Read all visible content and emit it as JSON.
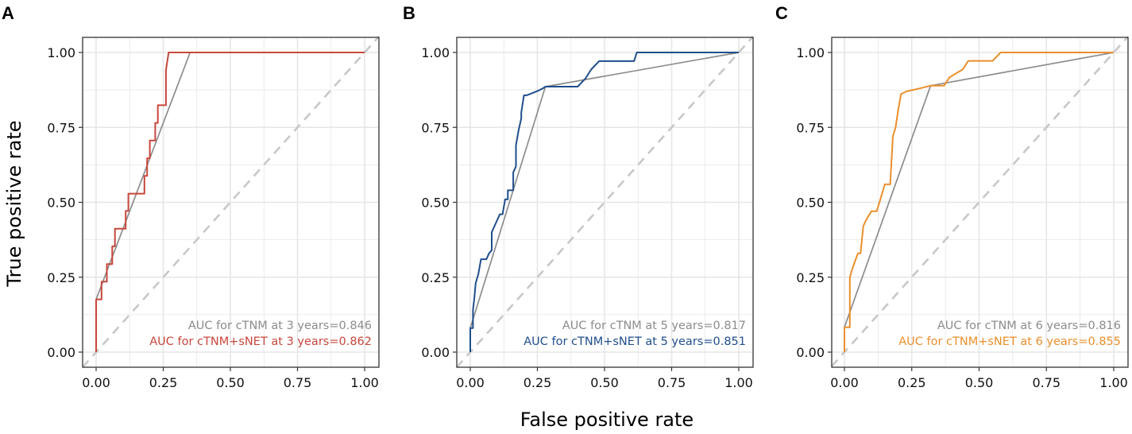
{
  "figure": {
    "ylabel": "True positive rate",
    "xlabel": "False positive rate"
  },
  "colors": {
    "grid": "#e6e6e6",
    "border": "#333333",
    "diagonal": "#c8c8c8",
    "ctnm": "#8c8c8c",
    "panel_a": "#c8473c",
    "panel_b": "#1f4e8c",
    "panel_c": "#ea8f2c"
  },
  "chart_data": [
    {
      "type": "line",
      "panel": "A",
      "xlim": [
        0,
        1
      ],
      "ylim": [
        0,
        1
      ],
      "xticks": [
        "0.00",
        "0.25",
        "0.50",
        "0.75",
        "1.00"
      ],
      "yticks": [
        "0.00",
        "0.25",
        "0.50",
        "0.75",
        "1.00"
      ],
      "grid": true,
      "legend": "bottom-right",
      "series": [
        {
          "name": "cTNM",
          "label": "AUC for cTNM at 3 years=0.846",
          "color_key": "ctnm",
          "x": [
            0,
            0.35,
            1.0
          ],
          "y": [
            0.176,
            1.0,
            1.0
          ]
        },
        {
          "name": "cTNM+sNET",
          "label": "AUC for cTNM+sNET at 3 years=0.862",
          "color_key": "panel_a",
          "x": [
            0,
            0,
            0.02,
            0.02,
            0.04,
            0.04,
            0.06,
            0.06,
            0.07,
            0.07,
            0.11,
            0.11,
            0.12,
            0.12,
            0.18,
            0.18,
            0.19,
            0.19,
            0.2,
            0.2,
            0.22,
            0.22,
            0.23,
            0.23,
            0.26,
            0.26,
            0.27,
            1.0
          ],
          "y": [
            0,
            0.176,
            0.176,
            0.235,
            0.235,
            0.294,
            0.294,
            0.353,
            0.353,
            0.412,
            0.412,
            0.471,
            0.471,
            0.529,
            0.529,
            0.588,
            0.588,
            0.647,
            0.647,
            0.706,
            0.706,
            0.765,
            0.765,
            0.824,
            0.824,
            0.941,
            1.0,
            1.0
          ]
        }
      ]
    },
    {
      "type": "line",
      "panel": "B",
      "xlim": [
        0,
        1
      ],
      "ylim": [
        0,
        1
      ],
      "xticks": [
        "0.00",
        "0.25",
        "0.50",
        "0.75",
        "1.00"
      ],
      "yticks": [
        "0.00",
        "0.25",
        "0.50",
        "0.75",
        "1.00"
      ],
      "grid": true,
      "legend": "bottom-right",
      "series": [
        {
          "name": "cTNM",
          "label": "AUC for cTNM at 5 years=0.817",
          "color_key": "ctnm",
          "x": [
            0,
            0.28,
            1.0
          ],
          "y": [
            0.08,
            0.886,
            1.0
          ]
        },
        {
          "name": "cTNM+sNET",
          "label": "AUC for cTNM+sNET at 5 years=0.851",
          "color_key": "panel_b",
          "x": [
            0,
            0,
            0.01,
            0.01,
            0.015,
            0.02,
            0.03,
            0.04,
            0.06,
            0.07,
            0.08,
            0.08,
            0.1,
            0.11,
            0.12,
            0.13,
            0.14,
            0.14,
            0.16,
            0.16,
            0.17,
            0.17,
            0.18,
            0.19,
            0.19,
            0.2,
            0.21,
            0.25,
            0.27,
            0.28,
            0.4,
            0.43,
            0.45,
            0.48,
            0.56,
            0.58,
            0.61,
            0.62,
            1.0
          ],
          "y": [
            0,
            0.08,
            0.08,
            0.14,
            0.18,
            0.23,
            0.26,
            0.31,
            0.31,
            0.33,
            0.34,
            0.4,
            0.44,
            0.46,
            0.46,
            0.51,
            0.51,
            0.54,
            0.54,
            0.6,
            0.62,
            0.69,
            0.74,
            0.78,
            0.8,
            0.857,
            0.857,
            0.871,
            0.88,
            0.886,
            0.886,
            0.914,
            0.943,
            0.971,
            0.971,
            0.971,
            0.971,
            1.0,
            1.0
          ]
        }
      ]
    },
    {
      "type": "line",
      "panel": "C",
      "xlim": [
        0,
        1
      ],
      "ylim": [
        0,
        1
      ],
      "xticks": [
        "0.00",
        "0.25",
        "0.50",
        "0.75",
        "1.00"
      ],
      "yticks": [
        "0.00",
        "0.25",
        "0.50",
        "0.75",
        "1.00"
      ],
      "grid": true,
      "legend": "bottom-right",
      "series": [
        {
          "name": "cTNM",
          "label": "AUC for cTNM at 6 years=0.816",
          "color_key": "ctnm",
          "x": [
            0,
            0.32,
            1.0
          ],
          "y": [
            0.083,
            0.889,
            1.0
          ]
        },
        {
          "name": "cTNM+sNET",
          "label": "AUC for cTNM+sNET at 6 years=0.855",
          "color_key": "panel_c",
          "x": [
            0,
            0,
            0.01,
            0.02,
            0.02,
            0.03,
            0.05,
            0.06,
            0.07,
            0.08,
            0.08,
            0.1,
            0.11,
            0.12,
            0.14,
            0.14,
            0.15,
            0.17,
            0.17,
            0.18,
            0.19,
            0.2,
            0.21,
            0.23,
            0.28,
            0.32,
            0.36,
            0.37,
            0.39,
            0.44,
            0.46,
            0.49,
            0.53,
            0.55,
            0.58,
            1.0
          ],
          "y": [
            0,
            0.083,
            0.083,
            0.083,
            0.25,
            0.28,
            0.33,
            0.33,
            0.42,
            0.44,
            0.44,
            0.47,
            0.47,
            0.47,
            0.53,
            0.53,
            0.56,
            0.56,
            0.56,
            0.72,
            0.75,
            0.81,
            0.861,
            0.87,
            0.88,
            0.889,
            0.889,
            0.889,
            0.917,
            0.944,
            0.972,
            0.972,
            0.972,
            0.972,
            1.0,
            1.0
          ]
        }
      ]
    }
  ]
}
